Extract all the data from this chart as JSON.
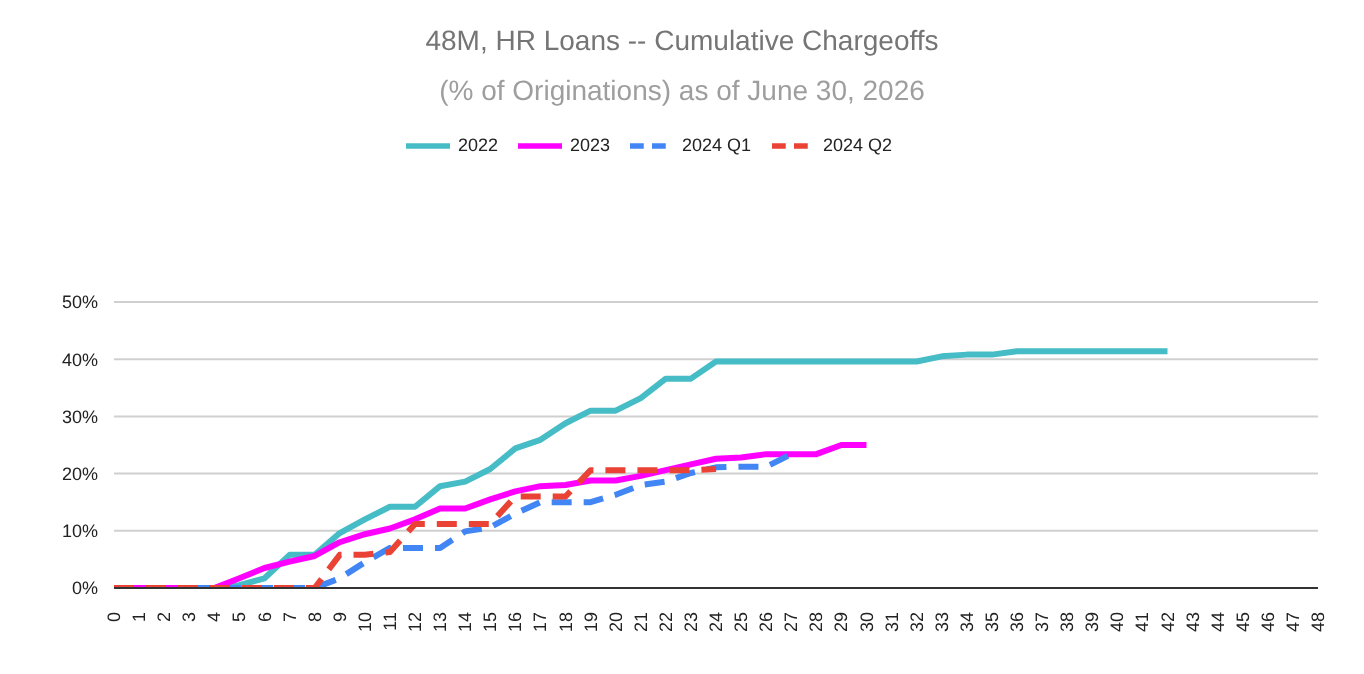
{
  "chart_data": {
    "type": "line",
    "title": "48M, HR Loans -- Cumulative Chargeoffs",
    "subtitle": "(% of Originations) as of June 30, 2026",
    "xlim": [
      0,
      48
    ],
    "xticks": [
      0,
      1,
      2,
      3,
      4,
      5,
      6,
      7,
      8,
      9,
      10,
      11,
      12,
      13,
      14,
      15,
      16,
      17,
      18,
      19,
      20,
      21,
      22,
      23,
      24,
      25,
      26,
      27,
      28,
      29,
      30,
      31,
      32,
      33,
      34,
      35,
      36,
      37,
      38,
      39,
      40,
      41,
      42,
      43,
      44,
      45,
      46,
      47,
      48
    ],
    "ylim": [
      0,
      50
    ],
    "yticks": [
      {
        "value": 0,
        "label": "0%"
      },
      {
        "value": 10,
        "label": "10%"
      },
      {
        "value": 20,
        "label": "20%"
      },
      {
        "value": 30,
        "label": "30%"
      },
      {
        "value": 40,
        "label": "40%"
      },
      {
        "value": 50,
        "label": "50%"
      }
    ],
    "grid": "y",
    "legend": "top",
    "marker": "none",
    "series": [
      {
        "name": "2022",
        "color": "#46bdc6",
        "line_style": "solid",
        "x": [
          3,
          4,
          5,
          6,
          7,
          8,
          9,
          10,
          11,
          12,
          13,
          14,
          15,
          16,
          17,
          18,
          19,
          20,
          21,
          22,
          23,
          24,
          25,
          26,
          27,
          28,
          29,
          30,
          31,
          32,
          33,
          34,
          35,
          36,
          37,
          38,
          39,
          40,
          41,
          42
        ],
        "values": [
          0,
          0,
          0.5,
          1.7,
          5.8,
          5.8,
          9.6,
          12,
          14.2,
          14.2,
          17.8,
          18.6,
          20.8,
          24.4,
          25.9,
          28.8,
          31,
          31,
          33.2,
          36.6,
          36.6,
          39.6,
          39.6,
          39.6,
          39.6,
          39.6,
          39.6,
          39.6,
          39.6,
          39.6,
          40.5,
          40.8,
          40.8,
          41.4,
          41.4,
          41.4,
          41.4,
          41.4,
          41.4,
          41.4
        ]
      },
      {
        "name": "2023",
        "color": "#ff00ff",
        "line_style": "solid",
        "x": [
          0,
          1,
          2,
          3,
          4,
          5,
          6,
          7,
          8,
          9,
          10,
          11,
          12,
          13,
          14,
          15,
          16,
          17,
          18,
          19,
          20,
          21,
          22,
          23,
          24,
          25,
          26,
          27,
          28,
          29,
          30
        ],
        "values": [
          0,
          0,
          0,
          0,
          0,
          1.7,
          3.5,
          4.6,
          5.6,
          8,
          9.4,
          10.4,
          12,
          13.9,
          13.9,
          15.5,
          16.9,
          17.8,
          18,
          18.8,
          18.8,
          19.6,
          20.6,
          21.6,
          22.6,
          22.8,
          23.4,
          23.4,
          23.4,
          25,
          25
        ]
      },
      {
        "name": "2024 Q1",
        "color": "#4285f4",
        "line_style": "dashed",
        "x": [
          3,
          4,
          5,
          6,
          7,
          8,
          9,
          10,
          11,
          12,
          13,
          14,
          15,
          16,
          17,
          18,
          19,
          20,
          21,
          22,
          23,
          24,
          25,
          26,
          27
        ],
        "values": [
          0,
          0,
          0,
          0,
          0,
          0,
          1.7,
          4.5,
          7,
          7,
          7,
          9.9,
          10.6,
          13,
          15,
          15,
          15,
          16.3,
          18,
          18.6,
          20.1,
          21.1,
          21.2,
          21.2,
          23.4
        ]
      },
      {
        "name": "2024 Q2",
        "color": "#ea4335",
        "line_style": "dashed",
        "x": [
          0,
          1,
          2,
          3,
          4,
          5,
          6,
          7,
          8,
          9,
          10,
          11,
          12,
          13,
          14,
          15,
          16,
          17,
          18,
          19,
          20,
          21,
          22,
          23,
          24
        ],
        "values": [
          0,
          0,
          0,
          0,
          0,
          0,
          0,
          0,
          0,
          5.8,
          5.8,
          6.3,
          11.2,
          11.2,
          11.2,
          11.2,
          16,
          16,
          16,
          20.6,
          20.6,
          20.6,
          20.6,
          20.6,
          20.8
        ]
      }
    ]
  }
}
